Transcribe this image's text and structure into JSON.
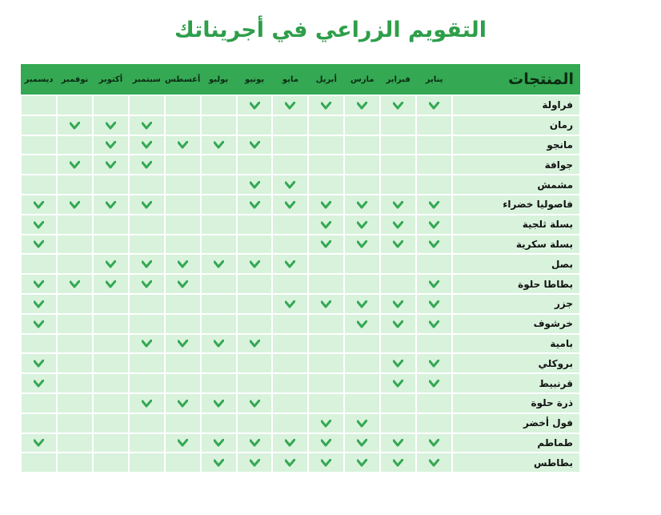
{
  "title": "التقويم الزراعي في أجريناتك",
  "header": {
    "product_label": "المنتجات",
    "months": [
      "يناير",
      "فبراير",
      "مارس",
      "أبريل",
      "مايو",
      "يونيو",
      "يوليو",
      "أغسطس",
      "سبتمبر",
      "أكتوبر",
      "نوفمبر",
      "ديسمبر"
    ]
  },
  "colors": {
    "header_bg": "#34a853",
    "cell_bg": "#d8f2dc",
    "check": "#34a853",
    "title": "#2e9e4a"
  },
  "check_icon": "checkmark-icon",
  "rows": [
    {
      "name": "فراولة",
      "months": [
        1,
        1,
        1,
        1,
        1,
        1,
        0,
        0,
        0,
        0,
        0,
        0
      ]
    },
    {
      "name": "رمان",
      "months": [
        0,
        0,
        0,
        0,
        0,
        0,
        0,
        0,
        1,
        1,
        1,
        0
      ]
    },
    {
      "name": "مانجو",
      "months": [
        0,
        0,
        0,
        0,
        0,
        1,
        1,
        1,
        1,
        1,
        0,
        0
      ]
    },
    {
      "name": "جوافة",
      "months": [
        0,
        0,
        0,
        0,
        0,
        0,
        0,
        0,
        1,
        1,
        1,
        0
      ]
    },
    {
      "name": "مشمش",
      "months": [
        0,
        0,
        0,
        0,
        1,
        1,
        0,
        0,
        0,
        0,
        0,
        0
      ]
    },
    {
      "name": "فاصوليا خضراء",
      "months": [
        1,
        1,
        1,
        1,
        1,
        1,
        0,
        0,
        1,
        1,
        1,
        1
      ]
    },
    {
      "name": "بسلة ثلجية",
      "months": [
        1,
        1,
        1,
        1,
        0,
        0,
        0,
        0,
        0,
        0,
        0,
        1
      ]
    },
    {
      "name": "بسلة سكرية",
      "months": [
        1,
        1,
        1,
        1,
        0,
        0,
        0,
        0,
        0,
        0,
        0,
        1
      ]
    },
    {
      "name": "بصل",
      "months": [
        0,
        0,
        0,
        0,
        1,
        1,
        1,
        1,
        1,
        1,
        0,
        0
      ]
    },
    {
      "name": "بطاطا حلوة",
      "months": [
        1,
        0,
        0,
        0,
        0,
        0,
        0,
        1,
        1,
        1,
        1,
        1
      ]
    },
    {
      "name": "جزر",
      "months": [
        1,
        1,
        1,
        1,
        1,
        0,
        0,
        0,
        0,
        0,
        0,
        1
      ]
    },
    {
      "name": "خرشوف",
      "months": [
        1,
        1,
        1,
        0,
        0,
        0,
        0,
        0,
        0,
        0,
        0,
        1
      ]
    },
    {
      "name": "بامية",
      "months": [
        0,
        0,
        0,
        0,
        0,
        1,
        1,
        1,
        1,
        0,
        0,
        0
      ]
    },
    {
      "name": "بروكلي",
      "months": [
        1,
        1,
        0,
        0,
        0,
        0,
        0,
        0,
        0,
        0,
        0,
        1
      ]
    },
    {
      "name": "قرنبيط",
      "months": [
        1,
        1,
        0,
        0,
        0,
        0,
        0,
        0,
        0,
        0,
        0,
        1
      ]
    },
    {
      "name": "ذرة حلوة",
      "months": [
        0,
        0,
        0,
        0,
        0,
        1,
        1,
        1,
        1,
        0,
        0,
        0
      ]
    },
    {
      "name": "فول أخضر",
      "months": [
        0,
        0,
        1,
        1,
        0,
        0,
        0,
        0,
        0,
        0,
        0,
        0
      ]
    },
    {
      "name": "طماطم",
      "months": [
        1,
        1,
        1,
        1,
        1,
        1,
        1,
        1,
        0,
        0,
        0,
        1
      ]
    },
    {
      "name": "بطاطس",
      "months": [
        1,
        1,
        1,
        1,
        1,
        1,
        1,
        0,
        0,
        0,
        0,
        0
      ]
    }
  ]
}
